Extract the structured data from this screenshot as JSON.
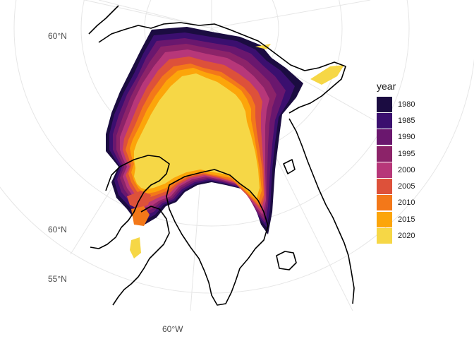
{
  "chart_data": {
    "type": "map",
    "legend": {
      "title": "year",
      "position": "right",
      "items": [
        {
          "label": "1980",
          "color": "#1b0c41"
        },
        {
          "label": "1985",
          "color": "#3b0f6f"
        },
        {
          "label": "1990",
          "color": "#6a176e"
        },
        {
          "label": "1995",
          "color": "#8c2369"
        },
        {
          "label": "2000",
          "color": "#b73779"
        },
        {
          "label": "2005",
          "color": "#dd513a"
        },
        {
          "label": "2010",
          "color": "#f37819"
        },
        {
          "label": "2015",
          "color": "#fca50a"
        },
        {
          "label": "2020",
          "color": "#f6d746"
        }
      ]
    },
    "lat_labels": [
      "60°N",
      "60°N",
      "55°N"
    ],
    "lon_labels": [
      "60°W"
    ],
    "grid": true
  }
}
